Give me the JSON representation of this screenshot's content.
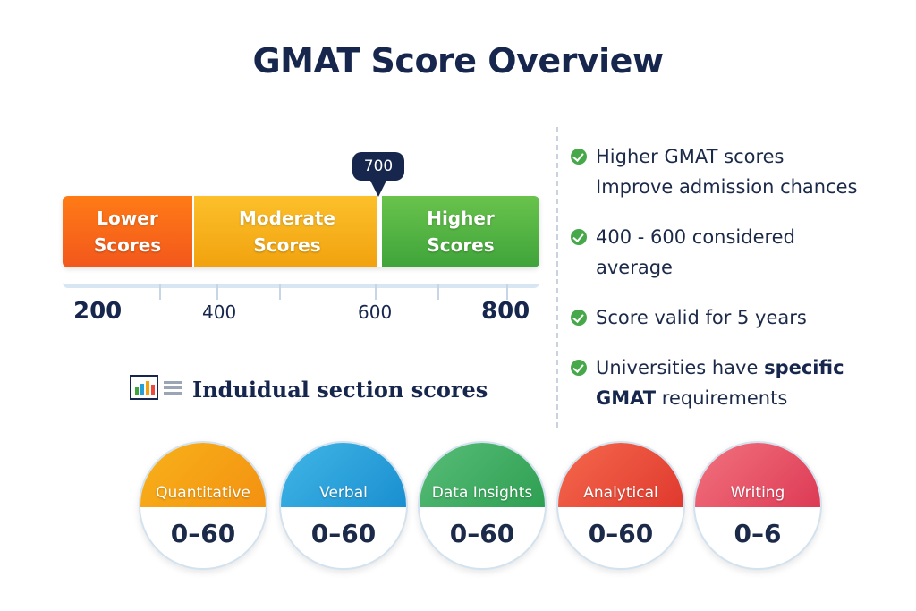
{
  "title": "GMAT Score Overview",
  "scale": {
    "marker_label": "700",
    "segments": [
      {
        "line1": "Lower",
        "line2": "Scores",
        "color": "#f2571c"
      },
      {
        "line1": "Moderate",
        "line2": "Scores",
        "color": "#f1a20e"
      },
      {
        "line1": "Higher",
        "line2": "Scores",
        "color": "#3fa43a"
      }
    ],
    "ticks": [
      "200",
      "400",
      "600",
      "800"
    ]
  },
  "section_header": {
    "icon": "bar-chart-icon",
    "title": "Induidual section scores"
  },
  "bullets": [
    {
      "line1": "Higher GMAT scores",
      "line2": "Improve admission chances"
    },
    {
      "line1": "400 - 600 considered",
      "line2": "average"
    },
    {
      "line1": "Score valid for 5 years",
      "line2": ""
    },
    {
      "pre": "Universities have ",
      "bold1": "specific",
      "bold2": "GMAT",
      "post": " requirements"
    }
  ],
  "sections": [
    {
      "name": "Quantitative",
      "range": "0–60",
      "color": "#f7a613"
    },
    {
      "name": "Verbal",
      "range": "0–60",
      "color": "#27a0d8"
    },
    {
      "name": "Data Insights",
      "range": "0–60",
      "color": "#3fae5e"
    },
    {
      "name": "Analytical",
      "range": "0–60",
      "color": "#ee4a3c"
    },
    {
      "name": "Writing",
      "range": "0–6",
      "color": "#e8465a"
    }
  ]
}
